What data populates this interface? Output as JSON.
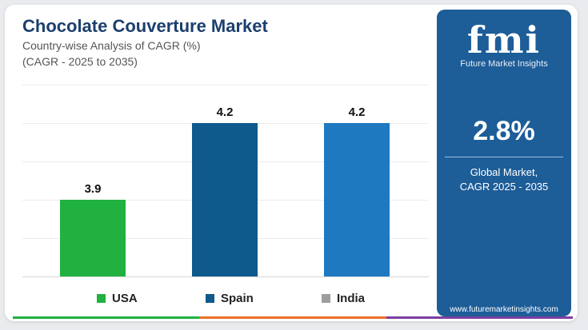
{
  "header": {
    "title": "Chocolate Couverture Market",
    "subtitle": "Country-wise Analysis of CAGR (%)",
    "subtitle2": "(CAGR - 2025 to 2035)"
  },
  "chart_data": {
    "type": "bar",
    "categories": [
      "USA",
      "Spain",
      "India"
    ],
    "values": [
      3.9,
      4.2,
      4.2
    ],
    "value_labels": [
      "3.9",
      "4.2",
      "4.2"
    ],
    "colors": [
      "#21b140",
      "#0f5a8c",
      "#1e79c1"
    ],
    "ylim": [
      3.6,
      4.35
    ],
    "grid": true,
    "legend_placement": "bottom",
    "legend": [
      {
        "label": "USA",
        "color": "#21b140"
      },
      {
        "label": "Spain",
        "color": "#0f5a8c"
      },
      {
        "label": "India",
        "color": "#9e9e9e"
      }
    ],
    "title": "Chocolate Couverture Market",
    "xlabel": "",
    "ylabel": ""
  },
  "sidebar": {
    "logo_text": "fmi",
    "logo_sub": "Future Market Insights",
    "kpi_value": "2.8%",
    "kpi_label_line1": "Global Market,",
    "kpi_label_line2": "CAGR 2025 - 2035",
    "website": "www.futuremarketinsights.com",
    "background": "#1d5d98"
  },
  "bottom_bar_colors": [
    "#21b140",
    "#e8702a",
    "#7b3fa0"
  ]
}
